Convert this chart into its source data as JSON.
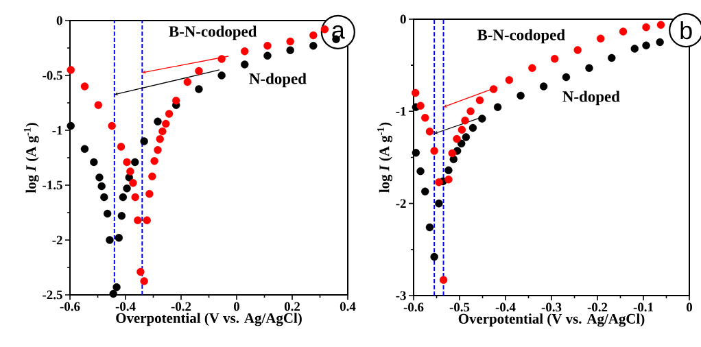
{
  "chart_data": [
    {
      "type": "scatter",
      "title": "a",
      "xlabel": "Overpotential (V vs. Ag/AgCl)",
      "ylabel": "log *I* (A g$^{-1}$)",
      "xlim": [
        -0.6,
        0.4
      ],
      "ylim": [
        -2.5,
        0
      ],
      "xticks": [
        -0.6,
        -0.4,
        -0.2,
        0,
        0.2,
        0.4
      ],
      "yticks": [
        -2.5,
        -2,
        -1.5,
        -1,
        -0.5,
        0
      ],
      "marker": "circle",
      "grid": false,
      "series": [
        {
          "name": "N-doped",
          "color": "#000000",
          "x": [
            -0.597,
            -0.547,
            -0.514,
            -0.494,
            -0.486,
            -0.477,
            -0.465,
            -0.457,
            -0.444,
            -0.432,
            -0.424,
            -0.414,
            -0.409,
            -0.395,
            -0.387,
            -0.366,
            -0.333,
            -0.284,
            -0.218,
            -0.136,
            -0.054,
            0.029,
            0.111,
            0.193,
            0.276,
            0.358
          ],
          "values": [
            -0.96,
            -1.17,
            -1.29,
            -1.43,
            -1.51,
            -1.61,
            -1.76,
            -2.0,
            -2.49,
            -2.43,
            -1.98,
            -1.78,
            -1.61,
            -1.53,
            -1.43,
            -1.29,
            -1.1,
            -0.92,
            -0.77,
            -0.625,
            -0.5,
            -0.4,
            -0.32,
            -0.27,
            -0.23,
            -0.17
          ]
        },
        {
          "name": "B-N-codoped",
          "color": "#ff0000",
          "x": [
            -0.597,
            -0.547,
            -0.498,
            -0.449,
            -0.416,
            -0.395,
            -0.383,
            -0.373,
            -0.365,
            -0.356,
            -0.346,
            -0.333,
            -0.323,
            -0.314,
            -0.304,
            -0.296,
            -0.284,
            -0.276,
            -0.267,
            -0.255,
            -0.243,
            -0.218,
            -0.177,
            -0.136,
            -0.054,
            0.029,
            0.111,
            0.193,
            0.276,
            0.317
          ],
          "values": [
            -0.45,
            -0.6,
            -0.77,
            -0.96,
            -1.15,
            -1.29,
            -1.375,
            -1.48,
            -1.61,
            -1.82,
            -2.29,
            -2.375,
            -1.82,
            -1.58,
            -1.42,
            -1.28,
            -1.18,
            -1.08,
            -1.01,
            -0.94,
            -0.85,
            -0.73,
            -0.56,
            -0.46,
            -0.35,
            -0.28,
            -0.23,
            -0.19,
            -0.135,
            -0.08
          ]
        }
      ],
      "ref_lines": [
        {
          "axis": "x",
          "value": -0.44,
          "color": "#0000ff",
          "line_style": "dashed"
        },
        {
          "axis": "x",
          "value": -0.34,
          "color": "#0000ff",
          "line_style": "dashed"
        }
      ]
    },
    {
      "type": "scatter",
      "title": "b",
      "xlabel": "Overpotential (V vs. Ag/AgCl)",
      "ylabel": "log *I* (A g$^{-1}$)",
      "xlim": [
        -0.6,
        0
      ],
      "ylim": [
        -3,
        0
      ],
      "xticks": [
        -0.6,
        -0.5,
        -0.4,
        -0.3,
        -0.2,
        -0.1,
        0
      ],
      "yticks": [
        -3,
        -2,
        -1,
        0
      ],
      "marker": "circle",
      "grid": false,
      "series": [
        {
          "name": "N-doped",
          "color": "#000000",
          "x": [
            -0.595,
            -0.595,
            -0.585,
            -0.575,
            -0.565,
            -0.555,
            -0.545,
            -0.536,
            -0.524,
            -0.513,
            -0.505,
            -0.496,
            -0.486,
            -0.471,
            -0.451,
            -0.417,
            -0.367,
            -0.317,
            -0.268,
            -0.218,
            -0.169,
            -0.119,
            -0.094,
            -0.064
          ],
          "values": [
            -0.955,
            -1.45,
            -1.65,
            -1.87,
            -2.26,
            -2.58,
            -2.0,
            -1.76,
            -1.64,
            -1.52,
            -1.43,
            -1.35,
            -1.28,
            -1.18,
            -1.08,
            -0.955,
            -0.83,
            -0.73,
            -0.63,
            -0.53,
            -0.42,
            -0.32,
            -0.285,
            -0.25
          ]
        },
        {
          "name": "B-N-codoped",
          "color": "#ff0000",
          "x": [
            -0.596,
            -0.585,
            -0.575,
            -0.565,
            -0.555,
            -0.545,
            -0.535,
            -0.524,
            -0.516,
            -0.506,
            -0.495,
            -0.488,
            -0.476,
            -0.456,
            -0.426,
            -0.392,
            -0.342,
            -0.293,
            -0.243,
            -0.193,
            -0.144,
            -0.094,
            -0.062
          ],
          "values": [
            -0.8,
            -0.94,
            -1.07,
            -1.22,
            -1.43,
            -1.77,
            -2.83,
            -1.74,
            -1.455,
            -1.3,
            -1.2,
            -1.1,
            -1.0,
            -0.88,
            -0.76,
            -0.66,
            -0.53,
            -0.43,
            -0.335,
            -0.21,
            -0.135,
            -0.087,
            -0.062
          ]
        }
      ],
      "ref_lines": [
        {
          "axis": "x",
          "value": -0.555,
          "color": "#0000ff",
          "line_style": "dashed"
        },
        {
          "axis": "x",
          "value": -0.535,
          "color": "#0000ff",
          "line_style": "dashed"
        }
      ]
    }
  ]
}
